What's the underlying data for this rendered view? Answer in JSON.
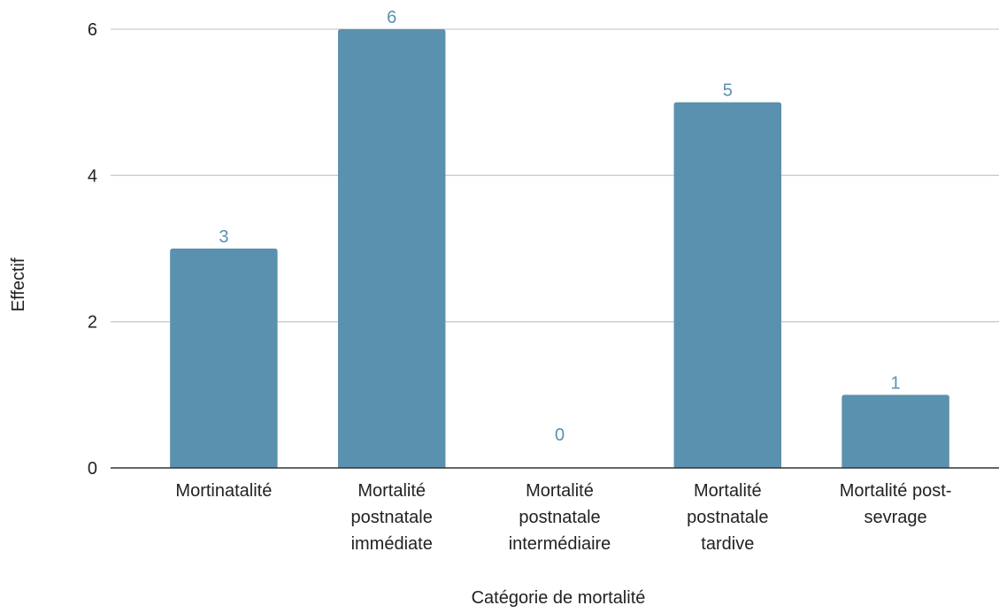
{
  "chart_data": {
    "type": "bar",
    "title": "",
    "xlabel": "Catégorie de mortalité",
    "ylabel": "Effectif",
    "categories": [
      [
        "Mortinatalité"
      ],
      [
        "Mortalité",
        "postnatale",
        "immédiate"
      ],
      [
        "Mortalité",
        "postnatale",
        "intermédiaire"
      ],
      [
        "Mortalité",
        "postnatale",
        "tardive"
      ],
      [
        "Mortalité post-",
        "sevrage"
      ]
    ],
    "values": [
      3,
      6,
      0,
      5,
      1
    ],
    "ylim": [
      0,
      6
    ],
    "yticks": [
      0,
      2,
      4,
      6
    ],
    "grid": true,
    "legend": "none",
    "data_labels": true,
    "colors": {
      "bar": "#5a91ae",
      "data_label": "#5a91ae",
      "grid": "#cccccc",
      "axis": "#333333",
      "text": "#222222"
    }
  }
}
